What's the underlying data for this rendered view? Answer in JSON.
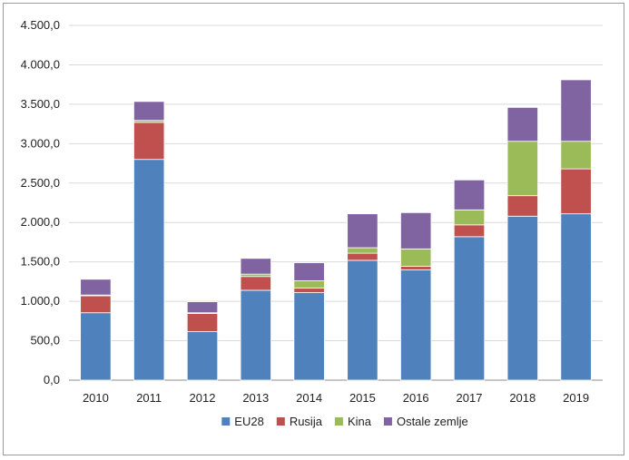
{
  "chart_data": {
    "type": "bar",
    "stacked": true,
    "categories": [
      "2010",
      "2011",
      "2012",
      "2013",
      "2014",
      "2015",
      "2016",
      "2017",
      "2018",
      "2019"
    ],
    "series": [
      {
        "name": "EU28",
        "color": "#4f81bd",
        "values": [
          855,
          2800,
          615,
          1140,
          1110,
          1520,
          1400,
          1820,
          2080,
          2110
        ]
      },
      {
        "name": "Rusija",
        "color": "#c0504d",
        "values": [
          215,
          470,
          230,
          175,
          60,
          90,
          45,
          150,
          260,
          570
        ]
      },
      {
        "name": "Kina",
        "color": "#9bbb59",
        "values": [
          10,
          25,
          10,
          30,
          90,
          70,
          220,
          190,
          690,
          350
        ]
      },
      {
        "name": "Ostale zemlje",
        "color": "#8064a2",
        "values": [
          200,
          240,
          140,
          200,
          230,
          430,
          460,
          380,
          430,
          780
        ]
      }
    ],
    "title": "",
    "xlabel": "",
    "ylabel": "",
    "ylim": [
      0,
      4500
    ],
    "yticks": [
      "0,0",
      "500,0",
      "1.000,0",
      "1.500,0",
      "2.000,0",
      "2.500,0",
      "3.000,0",
      "3.500,0",
      "4.000,0",
      "4.500,0"
    ],
    "grid": true,
    "legend_position": "bottom"
  }
}
